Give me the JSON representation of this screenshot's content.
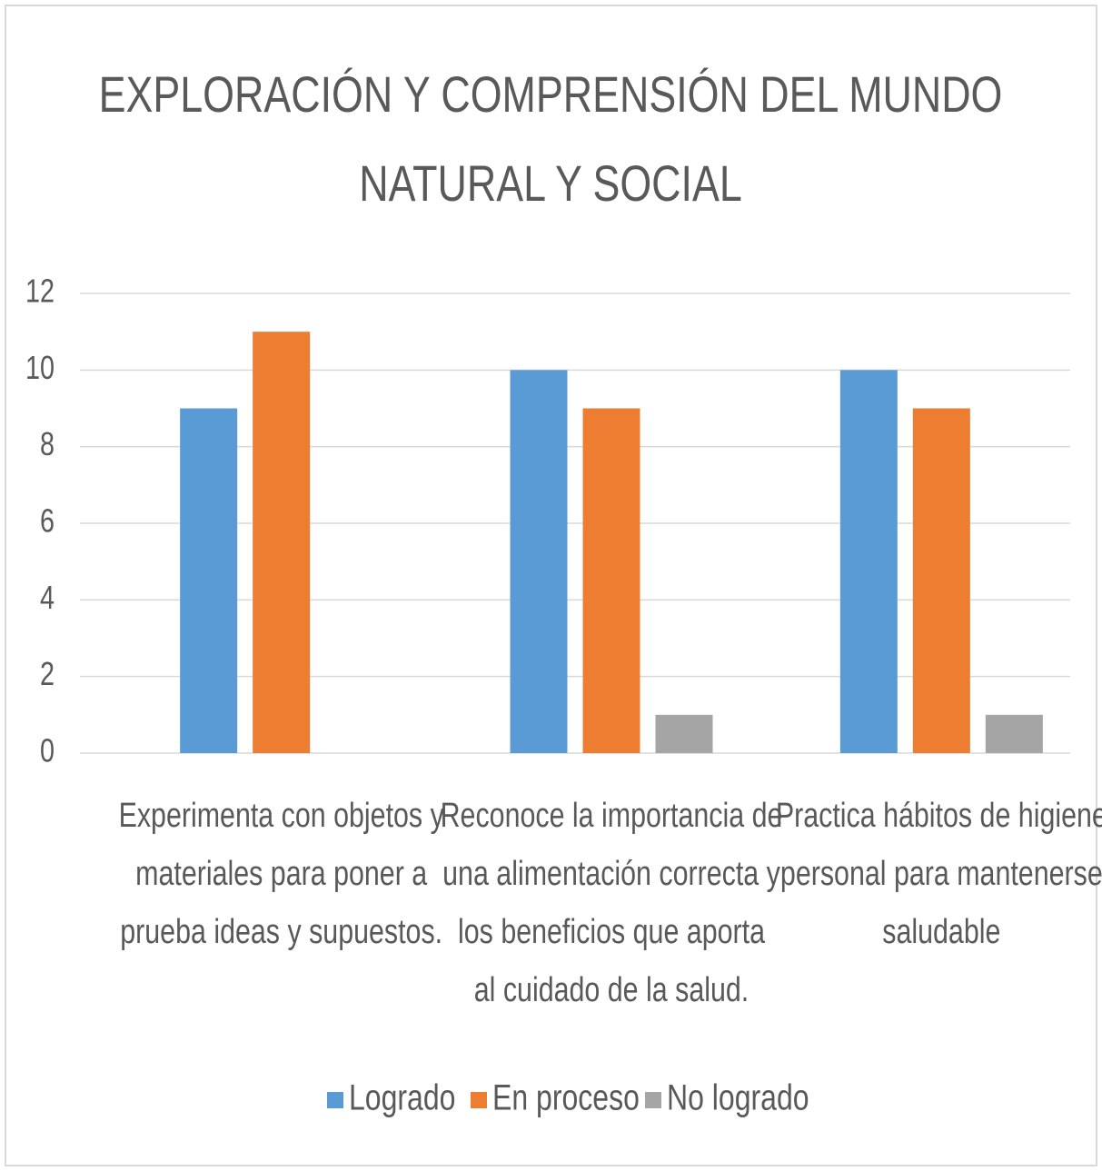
{
  "chart_data": {
    "type": "bar",
    "title": [
      "EXPLORACIÓN Y COMPRENSIÓN DEL MUNDO",
      "NATURAL Y SOCIAL"
    ],
    "categories": [
      [
        "Experimenta con objetos y",
        "materiales para poner a",
        "prueba ideas y supuestos."
      ],
      [
        "Reconoce la importancia de",
        "una alimentación correcta y",
        "los beneficios que aporta",
        "al cuidado de la salud."
      ],
      [
        "Practica hábitos de higiene",
        "personal para mantenerse",
        "saludable"
      ]
    ],
    "series": [
      {
        "name": "Logrado",
        "color": "#5b9bd5",
        "values": [
          9,
          10,
          10
        ]
      },
      {
        "name": "En proceso",
        "color": "#ed7d31",
        "values": [
          11,
          9,
          9
        ]
      },
      {
        "name": "No logrado",
        "color": "#a5a5a5",
        "values": [
          0,
          1,
          1
        ]
      }
    ],
    "ylim": [
      0,
      12
    ],
    "yticks": [
      0,
      2,
      4,
      6,
      8,
      10,
      12
    ],
    "grid": true,
    "legend": "bottom"
  }
}
